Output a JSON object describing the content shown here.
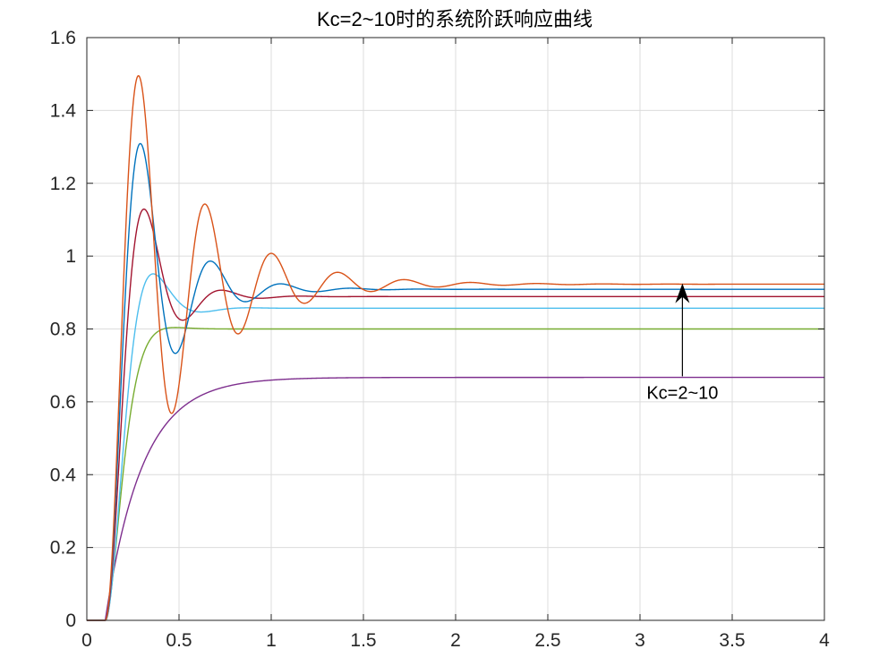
{
  "chart_data": {
    "type": "line",
    "title": "Kc=2~10时的系统阶跃响应曲线",
    "xlabel": "",
    "ylabel": "",
    "xlim": [
      0,
      4
    ],
    "ylim": [
      0,
      1.6
    ],
    "grid": true,
    "x_ticks": [
      "0",
      "0.5",
      "1",
      "1.5",
      "2",
      "2.5",
      "3",
      "3.5",
      "4"
    ],
    "y_ticks": [
      "0",
      "0.2",
      "0.4",
      "0.6",
      "0.8",
      "1",
      "1.2",
      "1.4",
      "1.6"
    ],
    "delay": 0.1,
    "annotation": {
      "text": "Kc=2~10",
      "arrow_x": 3.23,
      "arrow_from_y": 0.67,
      "arrow_to_y": 0.925
    },
    "series": [
      {
        "final": 0.667,
        "overshoot": 0.0,
        "peak_time": 0.0,
        "settle_tau": 0.2,
        "damped": false,
        "color": "#7e2f8e"
      },
      {
        "final": 0.8,
        "overshoot": 0.005,
        "peak_time": 0.48,
        "settle_tau": 0.12,
        "damped": true,
        "color": "#77ac30"
      },
      {
        "final": 0.857,
        "overshoot": 0.11,
        "peak_time": 0.36,
        "settle_tau": 0.14,
        "damped": true,
        "color": "#4dbeee"
      },
      {
        "final": 0.889,
        "overshoot": 0.27,
        "peak_time": 0.31,
        "settle_tau": 0.2,
        "damped": true,
        "color": "#a2142f"
      },
      {
        "final": 0.909,
        "overshoot": 0.44,
        "peak_time": 0.29,
        "settle_tau": 0.3,
        "damped": true,
        "color": "#0072bd"
      },
      {
        "final": 0.923,
        "overshoot": 0.62,
        "peak_time": 0.28,
        "settle_tau": 0.45,
        "damped": true,
        "color": "#d95319"
      }
    ]
  }
}
